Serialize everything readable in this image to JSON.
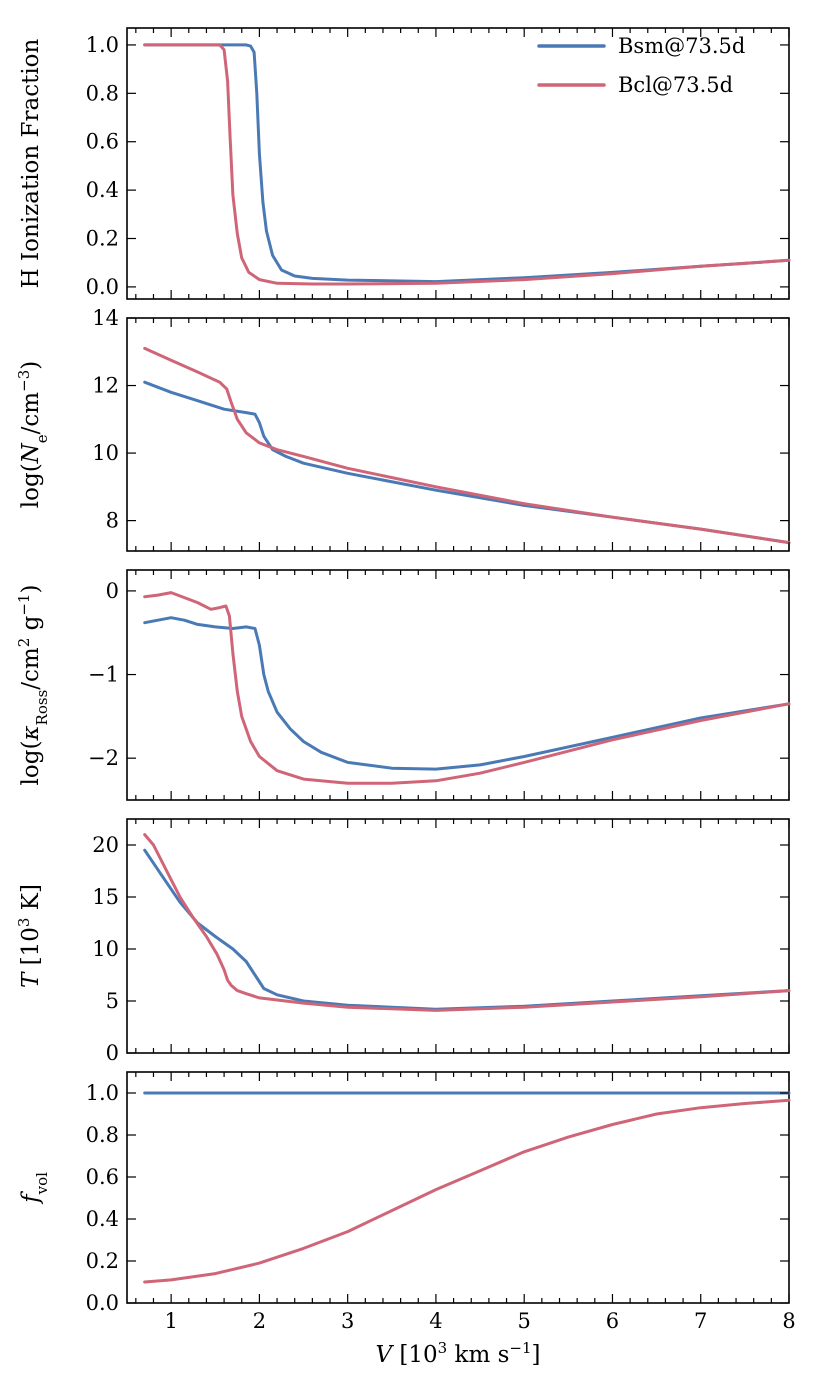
{
  "chart_data": {
    "type": "line",
    "shared_x": {
      "label": "V [10^3 km s^-1]",
      "range": [
        0.5,
        8
      ],
      "ticks": [
        1,
        2,
        3,
        4,
        5,
        6,
        7,
        8
      ],
      "tick_labels": [
        "1",
        "2",
        "3",
        "4",
        "5",
        "6",
        "7",
        "8"
      ]
    },
    "colors": {
      "Bsm@73.5d": "#4a7ab5",
      "Bcl@73.5d": "#cf6577"
    },
    "legend": {
      "location": "top-right",
      "entries": [
        "Bsm@73.5d",
        "Bcl@73.5d"
      ]
    },
    "panels": [
      {
        "id": "ionization",
        "ylabel": "H Ionization Fraction",
        "ylim": [
          -0.05,
          1.07
        ],
        "yticks": [
          0.0,
          0.2,
          0.4,
          0.6,
          0.8,
          1.0
        ],
        "ytick_labels": [
          "0.0",
          "0.2",
          "0.4",
          "0.6",
          "0.8",
          "1.0"
        ],
        "series": [
          {
            "name": "Bsm@73.5d",
            "x": [
              0.7,
              1.5,
              1.85,
              1.9,
              1.94,
              1.97,
              2.0,
              2.04,
              2.08,
              2.15,
              2.25,
              2.4,
              2.6,
              3.0,
              4.0,
              5.0,
              6.0,
              7.0,
              8.0
            ],
            "y": [
              1.0,
              1.0,
              1.0,
              0.995,
              0.97,
              0.8,
              0.55,
              0.35,
              0.23,
              0.13,
              0.07,
              0.045,
              0.035,
              0.028,
              0.022,
              0.038,
              0.06,
              0.085,
              0.11
            ]
          },
          {
            "name": "Bcl@73.5d",
            "x": [
              0.7,
              1.4,
              1.55,
              1.6,
              1.64,
              1.67,
              1.7,
              1.75,
              1.8,
              1.88,
              2.0,
              2.2,
              2.6,
              3.0,
              4.0,
              5.0,
              6.0,
              7.0,
              8.0
            ],
            "y": [
              1.0,
              1.0,
              1.0,
              0.98,
              0.85,
              0.6,
              0.38,
              0.22,
              0.12,
              0.06,
              0.03,
              0.015,
              0.012,
              0.012,
              0.015,
              0.03,
              0.055,
              0.085,
              0.11
            ]
          }
        ]
      },
      {
        "id": "electron-density",
        "ylabel": "log(N_e / cm^-3)",
        "ylim": [
          7.1,
          14.0
        ],
        "yticks": [
          8,
          10,
          12,
          14
        ],
        "ytick_labels": [
          "8",
          "10",
          "12",
          "14"
        ],
        "series": [
          {
            "name": "Bsm@73.5d",
            "x": [
              0.7,
              1.0,
              1.3,
              1.6,
              1.85,
              1.95,
              2.0,
              2.05,
              2.15,
              2.3,
              2.5,
              3.0,
              4.0,
              5.0,
              6.0,
              7.0,
              8.0
            ],
            "y": [
              12.1,
              11.8,
              11.55,
              11.3,
              11.2,
              11.15,
              10.9,
              10.5,
              10.1,
              9.9,
              9.7,
              9.4,
              8.9,
              8.45,
              8.1,
              7.75,
              7.35
            ]
          },
          {
            "name": "Bcl@73.5d",
            "x": [
              0.7,
              1.0,
              1.3,
              1.55,
              1.63,
              1.68,
              1.75,
              1.85,
              2.0,
              2.2,
              2.5,
              3.0,
              4.0,
              5.0,
              6.0,
              7.0,
              8.0
            ],
            "y": [
              13.1,
              12.75,
              12.4,
              12.1,
              11.9,
              11.5,
              11.0,
              10.6,
              10.3,
              10.1,
              9.9,
              9.55,
              9.0,
              8.5,
              8.1,
              7.75,
              7.35
            ]
          }
        ]
      },
      {
        "id": "rosseland-opacity",
        "ylabel": "log(κ_Ross / cm^2 g^-1)",
        "ylim": [
          -2.5,
          0.25
        ],
        "yticks": [
          0,
          -1,
          -2
        ],
        "ytick_labels": [
          "0",
          "−1",
          "−2"
        ],
        "series": [
          {
            "name": "Bsm@73.5d",
            "x": [
              0.7,
              0.85,
              1.0,
              1.15,
              1.3,
              1.5,
              1.7,
              1.85,
              1.95,
              2.0,
              2.05,
              2.1,
              2.2,
              2.35,
              2.5,
              2.7,
              3.0,
              3.5,
              4.0,
              4.5,
              5.0,
              6.0,
              7.0,
              8.0
            ],
            "y": [
              -0.38,
              -0.35,
              -0.32,
              -0.35,
              -0.4,
              -0.43,
              -0.45,
              -0.43,
              -0.45,
              -0.65,
              -1.0,
              -1.2,
              -1.45,
              -1.65,
              -1.8,
              -1.93,
              -2.05,
              -2.12,
              -2.13,
              -2.08,
              -1.98,
              -1.75,
              -1.52,
              -1.35
            ]
          },
          {
            "name": "Bcl@73.5d",
            "x": [
              0.7,
              0.85,
              1.0,
              1.15,
              1.3,
              1.45,
              1.55,
              1.62,
              1.66,
              1.7,
              1.75,
              1.8,
              1.9,
              2.0,
              2.2,
              2.5,
              3.0,
              3.5,
              4.0,
              4.5,
              5.0,
              6.0,
              7.0,
              8.0
            ],
            "y": [
              -0.07,
              -0.05,
              -0.02,
              -0.08,
              -0.14,
              -0.22,
              -0.2,
              -0.18,
              -0.3,
              -0.75,
              -1.2,
              -1.5,
              -1.8,
              -1.98,
              -2.15,
              -2.25,
              -2.3,
              -2.3,
              -2.27,
              -2.18,
              -2.05,
              -1.78,
              -1.55,
              -1.35
            ]
          }
        ]
      },
      {
        "id": "temperature",
        "ylabel": "T [10^3 K]",
        "ylim": [
          0,
          22.5
        ],
        "yticks": [
          0,
          5,
          10,
          15,
          20
        ],
        "ytick_labels": [
          "0",
          "5",
          "10",
          "15",
          "20"
        ],
        "series": [
          {
            "name": "Bsm@73.5d",
            "x": [
              0.7,
              0.9,
              1.1,
              1.3,
              1.5,
              1.7,
              1.85,
              1.95,
              2.05,
              2.2,
              2.5,
              3.0,
              4.0,
              5.0,
              6.0,
              7.0,
              8.0
            ],
            "y": [
              19.5,
              17.0,
              14.5,
              12.5,
              11.2,
              10.0,
              8.8,
              7.5,
              6.2,
              5.6,
              5.0,
              4.6,
              4.2,
              4.5,
              5.0,
              5.5,
              6.0
            ]
          },
          {
            "name": "Bcl@73.5d",
            "x": [
              0.7,
              0.8,
              0.95,
              1.1,
              1.25,
              1.4,
              1.52,
              1.6,
              1.64,
              1.68,
              1.75,
              1.85,
              2.0,
              2.5,
              3.0,
              4.0,
              5.0,
              6.0,
              7.0,
              8.0
            ],
            "y": [
              21.0,
              20.0,
              17.5,
              15.0,
              13.0,
              11.2,
              9.5,
              8.0,
              7.0,
              6.5,
              6.0,
              5.7,
              5.3,
              4.8,
              4.4,
              4.1,
              4.4,
              4.9,
              5.4,
              6.0
            ]
          }
        ]
      },
      {
        "id": "volume-filling",
        "ylabel": "f_vol",
        "ylim": [
          0,
          1.1
        ],
        "yticks": [
          0.0,
          0.2,
          0.4,
          0.6,
          0.8,
          1.0
        ],
        "ytick_labels": [
          "0.0",
          "0.2",
          "0.4",
          "0.6",
          "0.8",
          "1.0"
        ],
        "series": [
          {
            "name": "Bsm@73.5d",
            "x": [
              0.7,
              8.0
            ],
            "y": [
              1.0,
              1.0
            ]
          },
          {
            "name": "Bcl@73.5d",
            "x": [
              0.7,
              1.0,
              1.5,
              2.0,
              2.5,
              3.0,
              3.5,
              4.0,
              4.5,
              5.0,
              5.5,
              6.0,
              6.5,
              7.0,
              7.5,
              8.0
            ],
            "y": [
              0.1,
              0.11,
              0.14,
              0.19,
              0.26,
              0.34,
              0.44,
              0.54,
              0.63,
              0.72,
              0.79,
              0.85,
              0.9,
              0.93,
              0.95,
              0.965
            ]
          }
        ]
      }
    ]
  }
}
